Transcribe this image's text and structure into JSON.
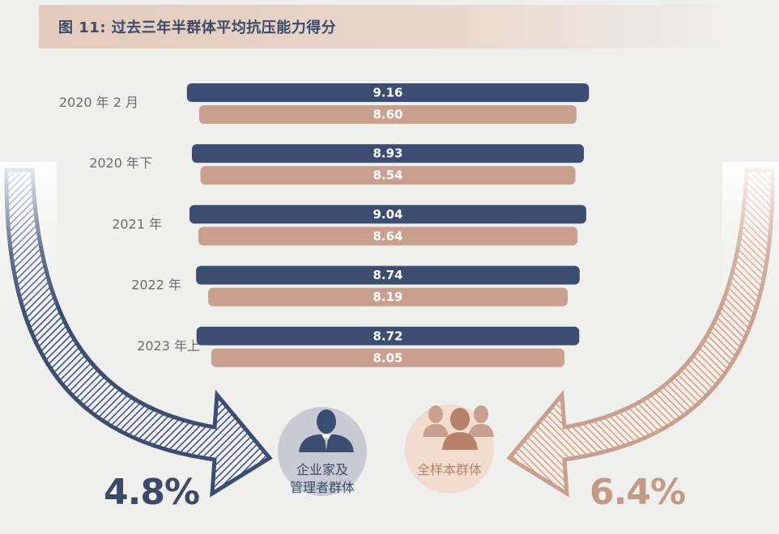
{
  "title": "图 11: 过去三年半群体平均抗压能力得分",
  "colors": {
    "executives": "#3b4e72",
    "all_sample": "#c9a08d"
  },
  "icons": {
    "executives": "businessman-icon",
    "all_sample": "group-people-icon"
  },
  "groups": {
    "executives_line1": "企业家及",
    "executives_line2": "管理者群体",
    "all_sample": "全样本群体"
  },
  "changes": {
    "executives": "4.8%",
    "all_sample": "6.4%"
  },
  "chart_data": {
    "type": "bar",
    "title": "图 11: 过去三年半群体平均抗压能力得分",
    "categories": [
      "2020 年 2 月",
      "2020 年下",
      "2021 年",
      "2022 年",
      "2023 年上"
    ],
    "series": [
      {
        "name": "企业家及管理者群体",
        "values": [
          9.16,
          8.93,
          9.04,
          8.74,
          8.72
        ],
        "labels": [
          "9.16",
          "8.93",
          "9.04",
          "8.74",
          "8.72"
        ]
      },
      {
        "name": "全样本群体",
        "values": [
          8.6,
          8.54,
          8.64,
          8.19,
          8.05
        ],
        "labels": [
          "8.60",
          "8.54",
          "8.64",
          "8.19",
          "8.05"
        ]
      }
    ],
    "orientation": "horizontal-centered",
    "grid": false
  }
}
